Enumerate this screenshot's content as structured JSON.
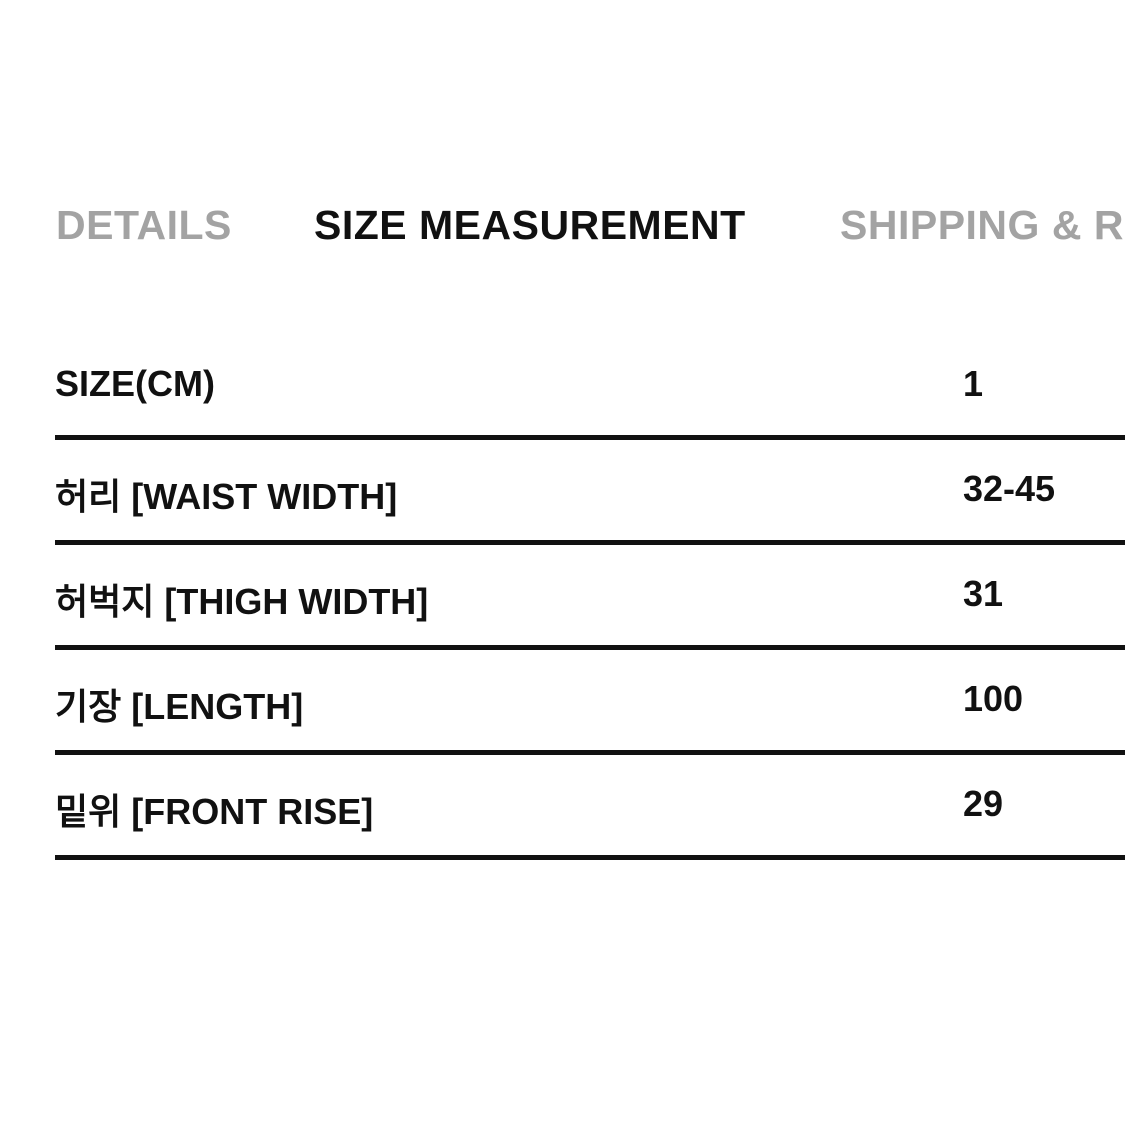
{
  "tabs": [
    {
      "label": "DETAILS",
      "active": false
    },
    {
      "label": "SIZE MEASUREMENT",
      "active": true
    },
    {
      "label": "SHIPPING & R",
      "active": false
    }
  ],
  "table": {
    "header": {
      "label": "SIZE(CM)",
      "value": "1"
    },
    "rows": [
      {
        "label": "허리 [WAIST WIDTH]",
        "value": "32-45"
      },
      {
        "label": "허벅지 [THIGH WIDTH]",
        "value": "31"
      },
      {
        "label": "기장 [LENGTH]",
        "value": "100"
      },
      {
        "label": "밑위 [FRONT RISE]",
        "value": "29"
      }
    ]
  }
}
